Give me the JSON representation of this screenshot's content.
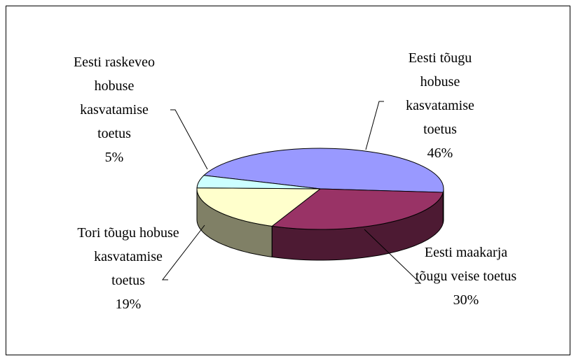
{
  "chart_data": {
    "type": "pie3d",
    "categories": [
      "Eesti tõugu hobuse kasvatamise toetus",
      "Eesti maakarja tõugu veise toetus",
      "Tori tõugu hobuse kasvatamise toetus",
      "Eesti raskeveo hobuse kasvatamise toetus"
    ],
    "values": [
      46,
      30,
      19,
      5
    ],
    "value_labels": [
      "46%",
      "30%",
      "19%",
      "5%"
    ],
    "colors": [
      "#9999ff",
      "#993366",
      "#ffffcc",
      "#ccffff"
    ]
  }
}
